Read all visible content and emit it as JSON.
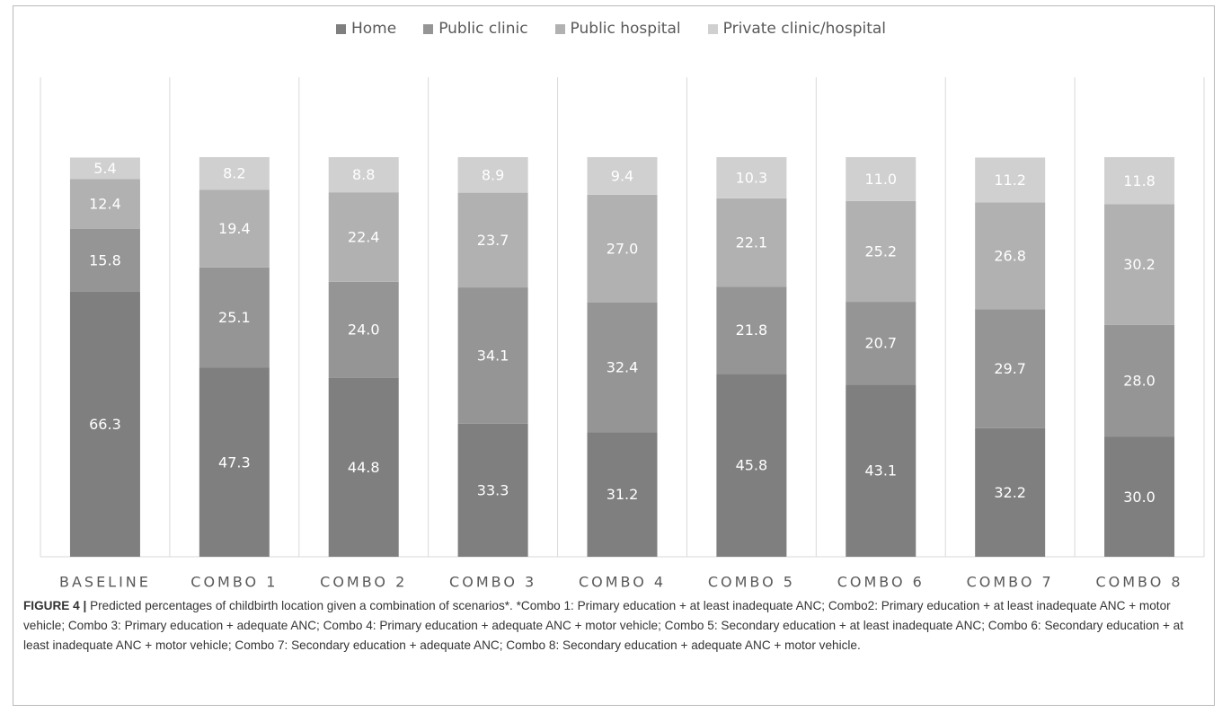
{
  "chart_data": {
    "type": "bar",
    "stacked": true,
    "orientation": "vertical",
    "categories": [
      "BASELINE",
      "COMBO 1",
      "COMBO 2",
      "COMBO 3",
      "COMBO 4",
      "COMBO 5",
      "COMBO 6",
      "COMBO 7",
      "COMBO 8"
    ],
    "series": [
      {
        "name": "Home",
        "color": "#7f7f7f",
        "values": [
          66.3,
          47.3,
          44.8,
          33.3,
          31.2,
          45.8,
          43.1,
          32.2,
          30.0
        ],
        "labels": [
          "66.3",
          "47.3",
          "44.8",
          "33.3",
          "31.2",
          "45.8",
          "43.1",
          "32.2",
          "30.0"
        ]
      },
      {
        "name": "Public clinic",
        "color": "#959595",
        "values": [
          15.8,
          25.1,
          24.0,
          34.1,
          32.4,
          21.8,
          20.7,
          29.7,
          28.0
        ],
        "labels": [
          "15.8",
          "25.1",
          "24.0",
          "34.1",
          "32.4",
          "21.8",
          "20.7",
          "29.7",
          "28.0"
        ]
      },
      {
        "name": "Public hospital",
        "color": "#b1b1b1",
        "values": [
          12.4,
          19.4,
          22.4,
          23.7,
          27.0,
          22.1,
          25.2,
          26.8,
          30.2
        ],
        "labels": [
          "12.4",
          "19.4",
          "22.4",
          "23.7",
          "27.0",
          "22.1",
          "25.2",
          "26.8",
          "30.2"
        ]
      },
      {
        "name": "Private clinic/hospital",
        "color": "#d0d0d0",
        "values": [
          5.4,
          8.2,
          8.8,
          8.9,
          9.4,
          10.3,
          11.0,
          11.2,
          11.8
        ],
        "labels": [
          "5.4",
          "8.2",
          "8.8",
          "8.9",
          "9.4",
          "10.3",
          "11.0",
          "11.2",
          "11.8"
        ]
      }
    ],
    "legend_position": "top-center",
    "grid": false,
    "category_separators": true,
    "data_label_color": "#ffffff",
    "title": "",
    "xlabel": "",
    "ylabel": ""
  },
  "caption": {
    "label": "FIGURE 4 |",
    "text": "Predicted percentages of childbirth location given a combination of scenarios*. *Combo 1: Primary education + at least inadequate ANC; Combo2: Primary education + at least inadequate ANC + motor vehicle; Combo 3: Primary education + adequate ANC; Combo 4: Primary education + adequate ANC + motor vehicle; Combo 5: Secondary education + at least inadequate ANC; Combo 6: Secondary education + at least inadequate ANC + motor vehicle; Combo 7: Secondary education + adequate ANC; Combo 8: Secondary education + adequate ANC + motor vehicle."
  }
}
